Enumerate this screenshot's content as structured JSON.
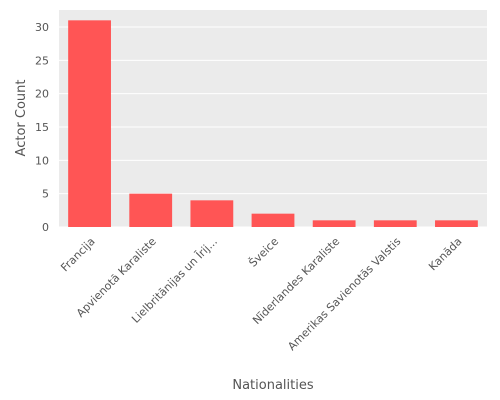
{
  "chart_data": {
    "type": "bar",
    "categories": [
      "Francija",
      "Apvienotā Karaliste",
      "Lielbritānijas un Īrij...",
      "Šveice",
      "Nīderlandes Karaliste",
      "Amerikas Savienotās Valstis",
      "Kanāda"
    ],
    "values": [
      31,
      5,
      4,
      2,
      1,
      1,
      1
    ],
    "xlabel": "Nationalities",
    "ylabel": "Actor Count",
    "ylim": [
      0,
      32.55
    ],
    "yticks": [
      0,
      5,
      10,
      15,
      20,
      25,
      30
    ],
    "grid": true,
    "colors": {
      "bar": "#ff5555",
      "background": "#ebebeb",
      "grid": "#ffffff",
      "text": "#555555"
    }
  }
}
